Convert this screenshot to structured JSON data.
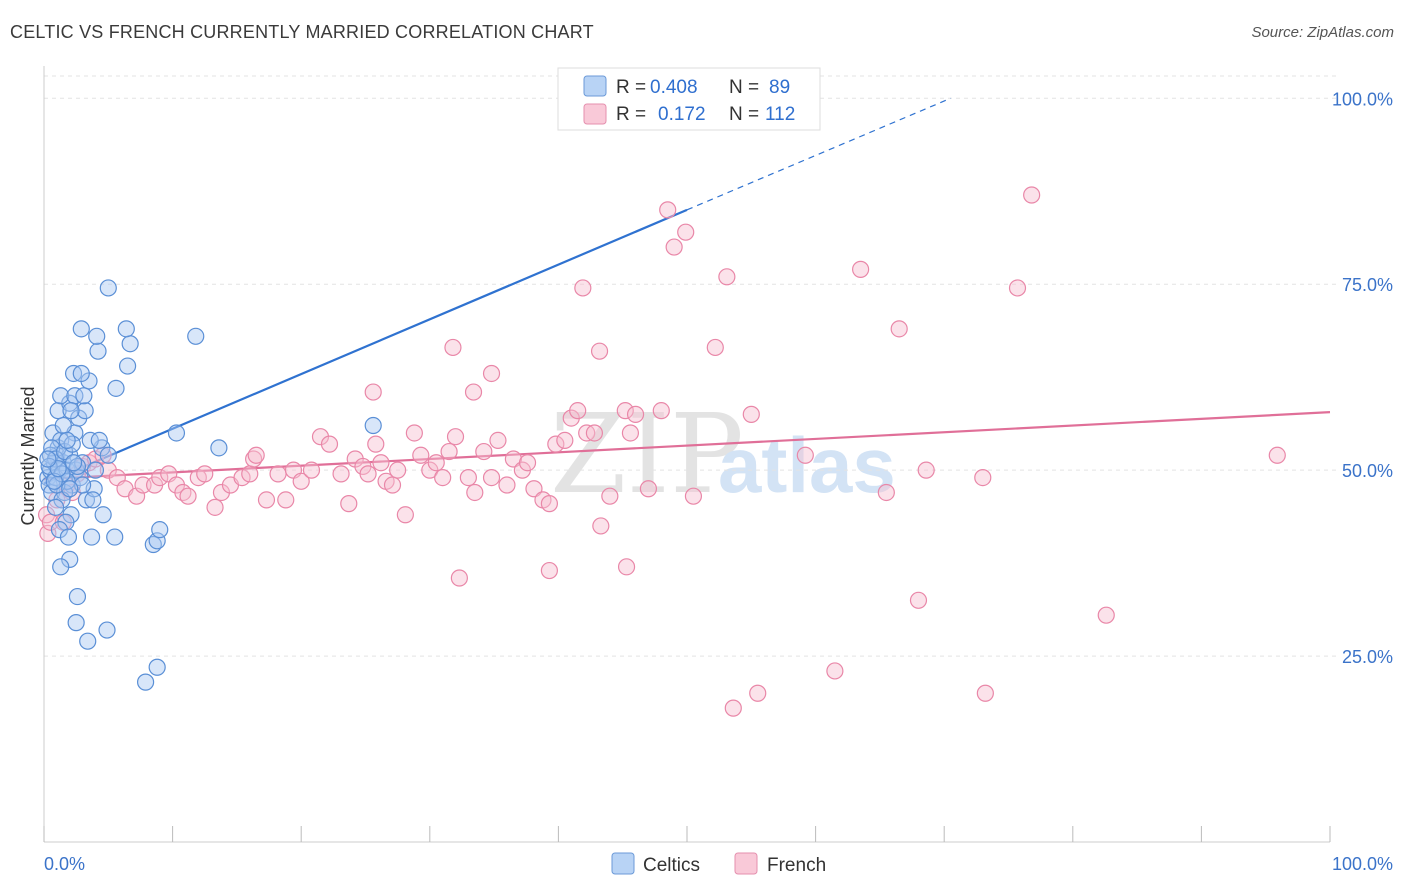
{
  "title": "CELTIC VS FRENCH CURRENTLY MARRIED CORRELATION CHART",
  "source": "Source: ZipAtlas.com",
  "colors": {
    "celtics_fill": "#a9c8f2",
    "celtics_stroke": "#5a8fd6",
    "celtics_line": "#2f72d0",
    "french_fill": "#f7bfd0",
    "french_stroke": "#e987a8",
    "french_line": "#e06f98",
    "grid": "#e3e3e3",
    "axis_text": "#3b73c9"
  },
  "legend": {
    "rows": [
      {
        "series": "Celtics",
        "r_label": "R =",
        "r_value": "0.408",
        "n_label": "N =",
        "n_value": "89"
      },
      {
        "series": "French",
        "r_label": "R =",
        "r_value": "0.172",
        "n_label": "N =",
        "n_value": "112"
      }
    ]
  },
  "watermark": {
    "zip": "ZIP",
    "atlas": "atlas"
  },
  "chart_data": {
    "type": "scatter",
    "title": "CELTIC VS FRENCH CURRENTLY MARRIED CORRELATION CHART",
    "xlabel": "",
    "ylabel": "Currently Married",
    "xlim": [
      0,
      100
    ],
    "ylim": [
      0,
      103
    ],
    "x_tick_labels": [
      "0.0%",
      "100.0%"
    ],
    "y_ticks": [
      25,
      50,
      75,
      100
    ],
    "y_tick_labels": [
      "25.0%",
      "50.0%",
      "75.0%",
      "100.0%"
    ],
    "grid": true,
    "legend_entries": [
      "Celtics",
      "French"
    ],
    "series": [
      {
        "name": "Celtics",
        "r": 0.408,
        "n": 89,
        "trend": {
          "x0": 0,
          "y0": 48.2,
          "x1": 50,
          "y1": 85.0,
          "dashed_to_x": 70.5,
          "dashed_to_y": 100.0
        },
        "points": [
          [
            0.3,
            49
          ],
          [
            0.5,
            50
          ],
          [
            0.8,
            51
          ],
          [
            0.4,
            48
          ],
          [
            0.6,
            47
          ],
          [
            1.0,
            52
          ],
          [
            1.2,
            50
          ],
          [
            0.9,
            49
          ],
          [
            1.5,
            51
          ],
          [
            1.8,
            50
          ],
          [
            2.0,
            52
          ],
          [
            2.2,
            48
          ],
          [
            1.1,
            53
          ],
          [
            0.7,
            55
          ],
          [
            1.3,
            54
          ],
          [
            0.5,
            52
          ],
          [
            2.5,
            50
          ],
          [
            2.8,
            49
          ],
          [
            3.0,
            51
          ],
          [
            1.6,
            47
          ],
          [
            1.4,
            46
          ],
          [
            0.9,
            45
          ],
          [
            2.1,
            44
          ],
          [
            1.7,
            43
          ],
          [
            1.2,
            42
          ],
          [
            1.9,
            41
          ],
          [
            3.3,
            46
          ],
          [
            4.0,
            50
          ],
          [
            4.5,
            53
          ],
          [
            3.6,
            54
          ],
          [
            2.4,
            55
          ],
          [
            1.5,
            56
          ],
          [
            2.7,
            57
          ],
          [
            3.2,
            58
          ],
          [
            1.1,
            58
          ],
          [
            2.0,
            59
          ],
          [
            1.3,
            60
          ],
          [
            2.4,
            60
          ],
          [
            3.1,
            60
          ],
          [
            3.5,
            62
          ],
          [
            5.6,
            61
          ],
          [
            2.3,
            63
          ],
          [
            2.9,
            63
          ],
          [
            6.5,
            64
          ],
          [
            4.2,
            66
          ],
          [
            6.7,
            67
          ],
          [
            2.9,
            69
          ],
          [
            4.1,
            68
          ],
          [
            6.4,
            69
          ],
          [
            11.8,
            68
          ],
          [
            5.0,
            74.5
          ],
          [
            2.0,
            38
          ],
          [
            1.3,
            37
          ],
          [
            2.6,
            33
          ],
          [
            3.7,
            41
          ],
          [
            5.5,
            41
          ],
          [
            8.5,
            40
          ],
          [
            8.8,
            40.5
          ],
          [
            9.0,
            42
          ],
          [
            2.5,
            29.5
          ],
          [
            3.4,
            27
          ],
          [
            4.9,
            28.5
          ],
          [
            8.8,
            23.5
          ],
          [
            7.9,
            21.5
          ],
          [
            1.8,
            48.5
          ],
          [
            2.6,
            50.5
          ],
          [
            3.9,
            47.5
          ],
          [
            0.6,
            53
          ],
          [
            0.9,
            51.5
          ],
          [
            1.6,
            52.5
          ],
          [
            2.3,
            51
          ],
          [
            3.0,
            48
          ],
          [
            3.8,
            46
          ],
          [
            4.6,
            44
          ],
          [
            0.4,
            50.5
          ],
          [
            1.0,
            48
          ],
          [
            1.4,
            49.5
          ],
          [
            2.2,
            53.5
          ],
          [
            4.3,
            54
          ],
          [
            5.0,
            52
          ],
          [
            2.1,
            58
          ],
          [
            1.8,
            54
          ],
          [
            10.3,
            55
          ],
          [
            13.6,
            53
          ],
          [
            25.6,
            56
          ],
          [
            0.8,
            48.5
          ],
          [
            1.1,
            50.2
          ],
          [
            2.0,
            47.5
          ],
          [
            0.3,
            51.5
          ]
        ]
      },
      {
        "name": "French",
        "r": 0.172,
        "n": 112,
        "trend": {
          "x0": 0,
          "y0": 48.8,
          "x1": 100,
          "y1": 57.8
        },
        "points": [
          [
            0.3,
            41.5
          ],
          [
            0.2,
            44
          ],
          [
            0.5,
            43
          ],
          [
            1.0,
            46
          ],
          [
            1.5,
            43
          ],
          [
            1.8,
            48
          ],
          [
            2.2,
            47
          ],
          [
            2.6,
            49.5
          ],
          [
            3.0,
            50.5
          ],
          [
            3.5,
            51
          ],
          [
            4.0,
            51.5
          ],
          [
            4.6,
            52
          ],
          [
            5.0,
            50
          ],
          [
            5.7,
            49
          ],
          [
            6.3,
            47.5
          ],
          [
            7.2,
            46.5
          ],
          [
            7.7,
            48
          ],
          [
            8.6,
            48
          ],
          [
            9.0,
            49
          ],
          [
            9.7,
            49.5
          ],
          [
            10.3,
            48
          ],
          [
            10.8,
            47
          ],
          [
            11.2,
            46.5
          ],
          [
            12.0,
            49
          ],
          [
            12.5,
            49.5
          ],
          [
            13.3,
            45
          ],
          [
            13.8,
            47
          ],
          [
            14.5,
            48
          ],
          [
            15.4,
            49
          ],
          [
            16.0,
            49.5
          ],
          [
            16.3,
            51.5
          ],
          [
            16.5,
            52
          ],
          [
            17.3,
            46
          ],
          [
            18.2,
            49.5
          ],
          [
            18.8,
            46
          ],
          [
            19.4,
            50
          ],
          [
            20.0,
            48.5
          ],
          [
            20.8,
            50
          ],
          [
            21.5,
            54.5
          ],
          [
            22.2,
            53.5
          ],
          [
            23.1,
            49.5
          ],
          [
            23.7,
            45.5
          ],
          [
            24.2,
            51.5
          ],
          [
            24.8,
            50.5
          ],
          [
            25.2,
            49.5
          ],
          [
            25.8,
            53.5
          ],
          [
            26.2,
            51
          ],
          [
            26.6,
            48.5
          ],
          [
            27.1,
            48
          ],
          [
            27.5,
            50
          ],
          [
            28.1,
            44
          ],
          [
            28.8,
            55
          ],
          [
            29.3,
            52
          ],
          [
            30.0,
            50
          ],
          [
            30.5,
            51
          ],
          [
            31.0,
            49
          ],
          [
            31.5,
            52.5
          ],
          [
            32.0,
            54.5
          ],
          [
            33.0,
            49
          ],
          [
            33.5,
            47
          ],
          [
            34.2,
            52.5
          ],
          [
            34.8,
            49
          ],
          [
            35.3,
            54
          ],
          [
            36.0,
            48
          ],
          [
            36.5,
            51.5
          ],
          [
            37.2,
            50
          ],
          [
            37.6,
            51
          ],
          [
            38.1,
            47.5
          ],
          [
            38.8,
            46
          ],
          [
            39.3,
            45.5
          ],
          [
            39.8,
            53.5
          ],
          [
            40.5,
            54
          ],
          [
            41.0,
            57
          ],
          [
            41.5,
            58
          ],
          [
            42.2,
            55
          ],
          [
            42.8,
            55
          ],
          [
            43.3,
            42.5
          ],
          [
            44.0,
            46.5
          ],
          [
            45.2,
            58
          ],
          [
            45.6,
            55
          ],
          [
            46.0,
            57.5
          ],
          [
            47.0,
            47.5
          ],
          [
            48.0,
            58
          ],
          [
            50.5,
            46.5
          ],
          [
            55.0,
            57.5
          ],
          [
            59.2,
            52
          ],
          [
            65.5,
            47
          ],
          [
            66.5,
            69
          ],
          [
            68.6,
            50
          ],
          [
            73.0,
            49
          ],
          [
            76.8,
            87
          ],
          [
            34.8,
            63
          ],
          [
            33.4,
            60.5
          ],
          [
            25.6,
            60.5
          ],
          [
            31.8,
            66.5
          ],
          [
            43.2,
            66
          ],
          [
            49.9,
            82
          ],
          [
            49.0,
            80
          ],
          [
            48.5,
            85
          ],
          [
            53.1,
            76
          ],
          [
            41.9,
            74.5
          ],
          [
            63.5,
            77
          ],
          [
            75.7,
            74.5
          ],
          [
            52.2,
            66.5
          ],
          [
            32.3,
            35.5
          ],
          [
            39.3,
            36.5
          ],
          [
            45.3,
            37
          ],
          [
            68.0,
            32.5
          ],
          [
            82.6,
            30.5
          ],
          [
            61.5,
            23
          ],
          [
            55.5,
            20
          ],
          [
            53.6,
            18
          ],
          [
            73.2,
            20
          ],
          [
            95.9,
            52
          ]
        ]
      }
    ]
  }
}
